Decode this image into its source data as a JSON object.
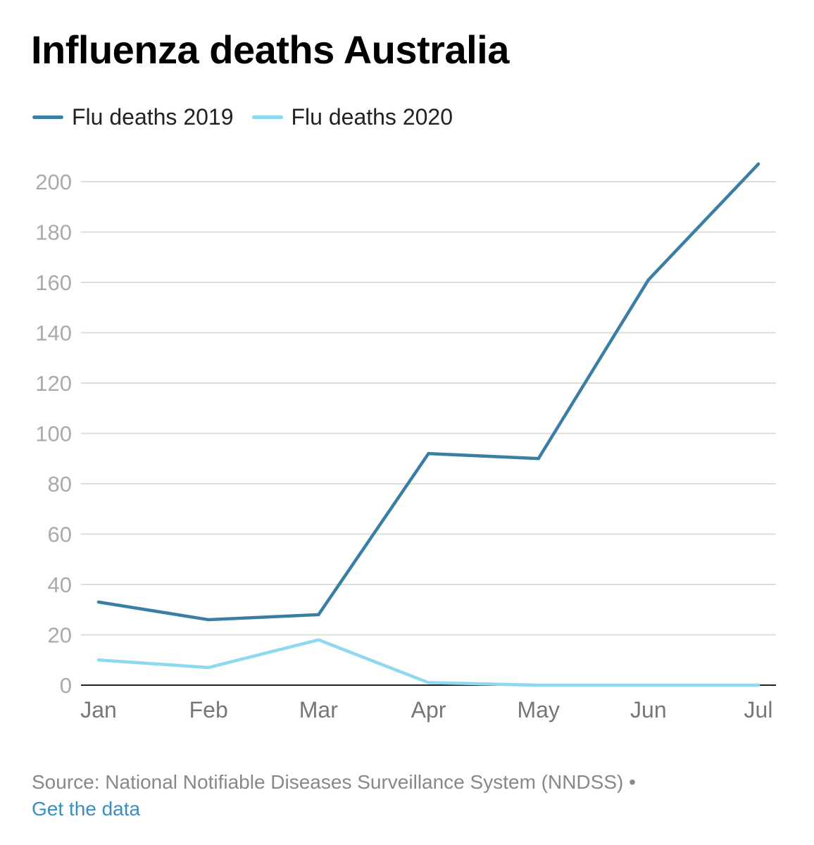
{
  "title": "Influenza deaths Australia",
  "footer": {
    "source": "Source: National Notifiable Diseases Surveillance System (NNDSS)",
    "separator": "•",
    "link": "Get the data"
  },
  "colors": {
    "series_2019": "#3a7fa3",
    "series_2020": "#8fd8f2",
    "grid": "#dddddd",
    "axis": "#222222",
    "tick_text": "#aaaaaa",
    "xtick_text": "#777777"
  },
  "chart_data": {
    "type": "line",
    "title": "Influenza deaths Australia",
    "xlabel": "",
    "ylabel": "",
    "categories": [
      "Jan",
      "Feb",
      "Mar",
      "Apr",
      "May",
      "Jun",
      "Jul"
    ],
    "ylim": [
      0,
      200
    ],
    "yticks": [
      0,
      20,
      40,
      60,
      80,
      100,
      120,
      140,
      160,
      180,
      200
    ],
    "grid": true,
    "legend_position": "top-left",
    "series": [
      {
        "name": "Flu deaths 2019",
        "values": [
          33,
          26,
          28,
          92,
          90,
          161,
          207
        ]
      },
      {
        "name": "Flu deaths 2020",
        "values": [
          10,
          7,
          18,
          1,
          0,
          0,
          0
        ]
      }
    ]
  }
}
